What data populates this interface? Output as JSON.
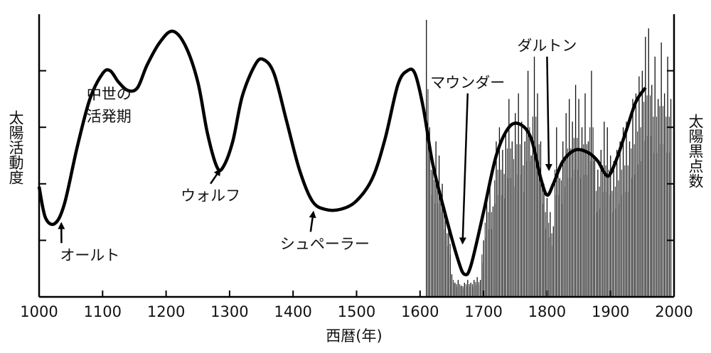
{
  "chart_data": {
    "type": "line",
    "title": "",
    "xlabel": "西暦(年)",
    "ylabel_left": "太陽活動度",
    "ylabel_right": "太陽黒点数",
    "xlim": [
      1000,
      2000
    ],
    "x_ticks": [
      1000,
      1100,
      1200,
      1300,
      1400,
      1500,
      1600,
      1700,
      1800,
      1900,
      2000
    ],
    "x_tick_labels": [
      "1000",
      "1100",
      "1200",
      "1300",
      "1400",
      "1500",
      "1600",
      "1700",
      "1800",
      "1900",
      "2000"
    ],
    "y_ticks_count": 4,
    "grid": false,
    "series": [
      {
        "role": "solar-activity-curve",
        "x": [
          1000,
          1010,
          1025,
          1040,
          1060,
          1080,
          1100,
          1112,
          1125,
          1140,
          1155,
          1170,
          1190,
          1210,
          1230,
          1250,
          1265,
          1280,
          1290,
          1305,
          1320,
          1340,
          1353,
          1370,
          1390,
          1410,
          1430,
          1450,
          1475,
          1500,
          1525,
          1545,
          1565,
          1580,
          1592,
          1605,
          1620,
          1640,
          1660,
          1670,
          1680,
          1700,
          1720,
          1740,
          1758,
          1775,
          1790,
          1800,
          1810,
          1825,
          1845,
          1865,
          1880,
          1890,
          1898,
          1910,
          1925,
          1940,
          1955
        ],
        "y": [
          0.39,
          0.28,
          0.26,
          0.33,
          0.53,
          0.7,
          0.79,
          0.8,
          0.76,
          0.73,
          0.74,
          0.82,
          0.9,
          0.94,
          0.89,
          0.76,
          0.58,
          0.46,
          0.46,
          0.55,
          0.71,
          0.82,
          0.84,
          0.79,
          0.62,
          0.45,
          0.34,
          0.31,
          0.31,
          0.34,
          0.42,
          0.56,
          0.75,
          0.8,
          0.79,
          0.67,
          0.47,
          0.29,
          0.13,
          0.08,
          0.11,
          0.3,
          0.5,
          0.6,
          0.61,
          0.56,
          0.42,
          0.36,
          0.4,
          0.48,
          0.52,
          0.51,
          0.48,
          0.44,
          0.43,
          0.49,
          0.59,
          0.69,
          0.74
        ]
      },
      {
        "role": "sunspot-cycles",
        "x": [
          1610,
          1615,
          1620,
          1625,
          1630,
          1635,
          1640,
          1645,
          1650,
          1655,
          1660,
          1665,
          1670,
          1675,
          1680,
          1685,
          1690,
          1695,
          1700,
          1705,
          1710,
          1715,
          1720,
          1725,
          1730,
          1735,
          1740,
          1745,
          1750,
          1755,
          1760,
          1765,
          1770,
          1775,
          1780,
          1785,
          1790,
          1795,
          1800,
          1805,
          1810,
          1815,
          1820,
          1825,
          1830,
          1835,
          1840,
          1845,
          1850,
          1855,
          1860,
          1865,
          1870,
          1875,
          1880,
          1885,
          1890,
          1895,
          1900,
          1905,
          1910,
          1915,
          1920,
          1925,
          1930,
          1935,
          1940,
          1945,
          1950,
          1955,
          1960,
          1965,
          1970,
          1975,
          1980,
          1985,
          1990,
          1995
        ],
        "y": [
          0.98,
          0.6,
          0.45,
          0.55,
          0.5,
          0.4,
          0.3,
          0.25,
          0.08,
          0.05,
          0.06,
          0.04,
          0.05,
          0.06,
          0.05,
          0.06,
          0.07,
          0.06,
          0.2,
          0.35,
          0.4,
          0.32,
          0.55,
          0.6,
          0.52,
          0.58,
          0.7,
          0.55,
          0.65,
          0.72,
          0.62,
          0.55,
          0.8,
          0.5,
          0.85,
          0.72,
          0.55,
          0.4,
          0.35,
          0.3,
          0.25,
          0.6,
          0.42,
          0.55,
          0.65,
          0.7,
          0.62,
          0.75,
          0.7,
          0.6,
          0.72,
          0.55,
          0.8,
          0.5,
          0.45,
          0.52,
          0.62,
          0.6,
          0.5,
          0.48,
          0.52,
          0.55,
          0.6,
          0.62,
          0.55,
          0.7,
          0.72,
          0.78,
          0.8,
          0.92,
          0.95,
          0.75,
          0.85,
          0.7,
          0.9,
          0.72,
          0.85,
          0.7
        ]
      }
    ],
    "annotations": [
      {
        "label": "中世の",
        "x": 1110,
        "y": 0.7
      },
      {
        "label": "活発期",
        "x": 1110,
        "y": 0.62
      },
      {
        "label": "オールト",
        "x": 1080,
        "y": 0.13,
        "arrow_to_x": 1035,
        "arrow_to_y": 0.26
      },
      {
        "label": "ウォルフ",
        "x": 1270,
        "y": 0.34,
        "arrow_to_x": 1285,
        "arrow_to_y": 0.45
      },
      {
        "label": "シュペーラー",
        "x": 1450,
        "y": 0.17,
        "arrow_to_x": 1432,
        "arrow_to_y": 0.3
      },
      {
        "label": "マウンダー",
        "x": 1675,
        "y": 0.74,
        "arrow_to_x": 1667,
        "arrow_to_y": 0.19
      },
      {
        "label": "ダルトン",
        "x": 1800,
        "y": 0.87,
        "arrow_to_x": 1803,
        "arrow_to_y": 0.45
      }
    ]
  }
}
